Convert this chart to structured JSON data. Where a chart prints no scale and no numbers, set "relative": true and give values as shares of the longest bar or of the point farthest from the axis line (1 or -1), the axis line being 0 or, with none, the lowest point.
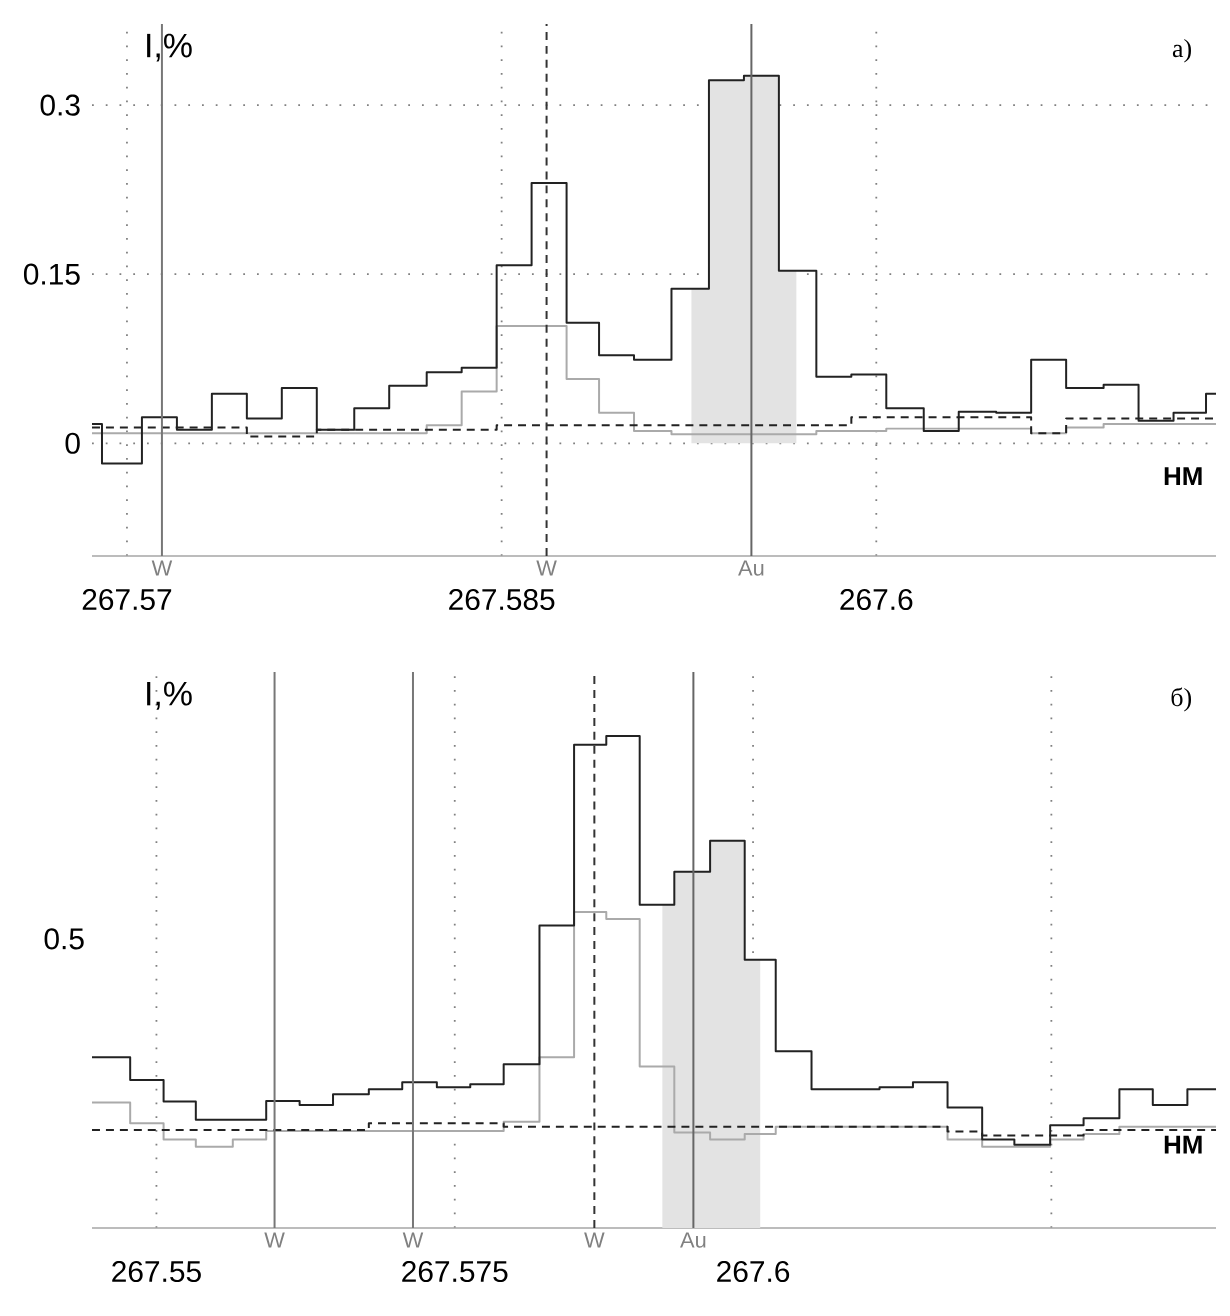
{
  "chart_data": [
    {
      "type": "step",
      "title": "а)",
      "xlabel": "НМ",
      "ylabel": "I,%",
      "xlim": [
        267.5686,
        267.6136
      ],
      "ylim": [
        -0.1,
        0.372
      ],
      "xticks": [
        267.57,
        267.585,
        267.6
      ],
      "yticks": [
        0,
        0.15,
        0.3
      ],
      "grid": true,
      "series": [
        {
          "type": "area",
          "color": "#e3e3e3",
          "x": [
            267.5926,
            267.5933,
            267.5947,
            267.5961,
            267.5968
          ],
          "values": [
            0.137,
            0.322,
            0.326,
            0.153,
            0.153
          ]
        },
        {
          "color": "#aaaaaa",
          "x": [
            267.5686,
            267.582,
            267.5834,
            267.5848,
            267.5876,
            267.5889,
            267.5903,
            267.5918,
            267.5976,
            267.6004,
            267.6062,
            267.6076,
            267.6091,
            267.6136
          ],
          "values": [
            0.009,
            0.016,
            0.046,
            0.104,
            0.057,
            0.027,
            0.011,
            0.008,
            0.011,
            0.013,
            0.009,
            0.014,
            0.017,
            0.017
          ]
        },
        {
          "color": "#222222",
          "line_style": "dashed",
          "x": [
            267.5686,
            267.5748,
            267.5776,
            267.5848,
            267.599,
            267.6062,
            267.6076,
            267.6136
          ],
          "values": [
            0.014,
            0.006,
            0.012,
            0.016,
            0.023,
            0.009,
            0.022,
            0.022
          ]
        },
        {
          "color": "#222222",
          "x": [
            267.5686,
            267.569,
            267.5706,
            267.572,
            267.5734,
            267.5748,
            267.5762,
            267.5776,
            267.5791,
            267.5805,
            267.582,
            267.5834,
            267.5848,
            267.5862,
            267.5876,
            267.5889,
            267.5903,
            267.5918,
            267.5933,
            267.5947,
            267.5961,
            267.5976,
            267.599,
            267.6004,
            267.6019,
            267.6033,
            267.6048,
            267.6062,
            267.6076,
            267.6091,
            267.6105,
            267.6119,
            267.6132,
            267.6136
          ],
          "values": [
            0.017,
            -0.018,
            0.023,
            0.012,
            0.044,
            0.022,
            0.049,
            0.012,
            0.031,
            0.051,
            0.063,
            0.067,
            0.158,
            0.231,
            0.107,
            0.078,
            0.074,
            0.137,
            0.322,
            0.326,
            0.153,
            0.059,
            0.061,
            0.031,
            0.011,
            0.028,
            0.027,
            0.074,
            0.049,
            0.052,
            0.02,
            0.027,
            0.044,
            0.044
          ]
        }
      ],
      "ref_lines": [
        {
          "axis": "x",
          "value": 267.5714,
          "label": "W",
          "color": "#777777",
          "line_style": "solid"
        },
        {
          "axis": "x",
          "value": 267.5868,
          "label": "W",
          "color": "#333333",
          "line_style": "dashed"
        },
        {
          "axis": "x",
          "value": 267.595,
          "label": "Au",
          "color": "#666666",
          "line_style": "solid"
        }
      ]
    },
    {
      "type": "step",
      "title": "б)",
      "xlabel": "НМ",
      "ylabel": "I,%",
      "relative": true,
      "xlim": [
        267.5446,
        267.6388
      ],
      "xticks": [
        267.55,
        267.575,
        267.6,
        {
          "value": 267.625,
          "label": null
        }
      ],
      "grid": "x",
      "annotations": [
        "0.5"
      ],
      "series": [
        {
          "type": "area",
          "color": "#e3e3e3",
          "x": [
            267.5924,
            267.5934,
            267.5964,
            267.5993,
            267.6006
          ],
          "values": [
            0.657,
            0.724,
            0.787,
            0.545,
            0.545
          ]
        },
        {
          "color": "#aaaaaa",
          "x": [
            267.5446,
            267.5478,
            267.5506,
            267.5533,
            267.5564,
            267.5592,
            267.5791,
            267.5821,
            267.585,
            267.5877,
            267.5905,
            267.5934,
            267.5964,
            267.5993,
            267.6019,
            267.6163,
            267.6192,
            267.6249,
            267.6277,
            267.6307,
            267.6388
          ],
          "values": [
            0.255,
            0.213,
            0.18,
            0.165,
            0.18,
            0.197,
            0.216,
            0.347,
            0.642,
            0.628,
            0.328,
            0.194,
            0.18,
            0.191,
            0.206,
            0.18,
            0.165,
            0.18,
            0.191,
            0.206,
            0.206
          ]
        },
        {
          "color": "#222222",
          "line_style": "dashed",
          "x": [
            267.5446,
            267.5678,
            267.5791,
            267.6163,
            267.6192,
            267.6277,
            267.6388
          ],
          "values": [
            0.199,
            0.213,
            0.206,
            0.196,
            0.188,
            0.199,
            0.199
          ]
        },
        {
          "color": "#222222",
          "x": [
            267.5446,
            267.5478,
            267.5506,
            267.5533,
            267.5592,
            267.562,
            267.5648,
            267.5678,
            267.5706,
            267.5735,
            267.5763,
            267.5791,
            267.5821,
            267.585,
            267.5877,
            267.5905,
            267.5934,
            267.5964,
            267.5993,
            267.6019,
            267.6049,
            267.6106,
            267.6134,
            267.6163,
            267.6192,
            267.6219,
            267.6249,
            267.6277,
            267.6307,
            267.6335,
            267.6364,
            267.6388
          ],
          "values": [
            0.347,
            0.301,
            0.257,
            0.22,
            0.258,
            0.25,
            0.272,
            0.282,
            0.296,
            0.286,
            0.292,
            0.333,
            0.615,
            0.982,
            1,
            0.657,
            0.724,
            0.787,
            0.545,
            0.359,
            0.282,
            0.286,
            0.296,
            0.245,
            0.18,
            0.169,
            0.209,
            0.223,
            0.282,
            0.25,
            0.282,
            0.282
          ]
        }
      ],
      "ref_lines": [
        {
          "axis": "x",
          "value": 267.5599,
          "label": "W",
          "color": "#777777",
          "line_style": "solid"
        },
        {
          "axis": "x",
          "value": 267.5715,
          "label": "W",
          "color": "#777777",
          "line_style": "solid"
        },
        {
          "axis": "x",
          "value": 267.5867,
          "label": "W",
          "color": "#333333",
          "line_style": "dashed"
        },
        {
          "axis": "x",
          "value": 267.595,
          "label": "Au",
          "color": "#666666",
          "line_style": "solid"
        }
      ]
    }
  ]
}
